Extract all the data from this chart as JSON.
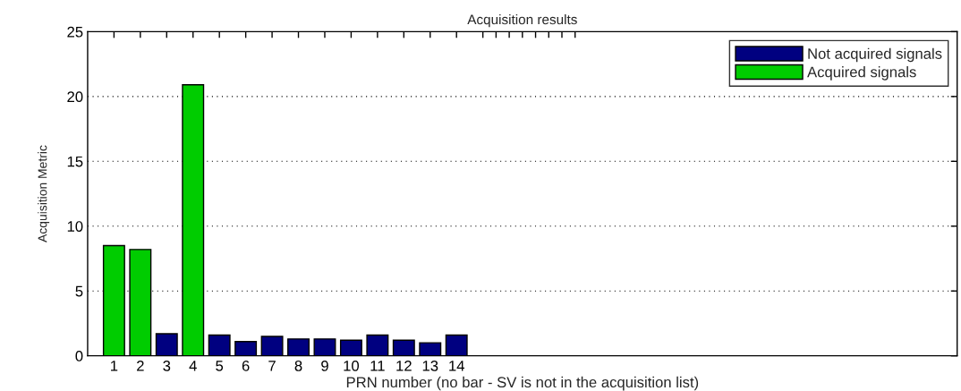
{
  "chart_data": {
    "type": "bar",
    "title": "Acquisition results",
    "xlabel": "PRN number (no bar - SV is not in the acquisition list)",
    "ylabel": "Acquisition Metric",
    "x": [
      1,
      2,
      3,
      4,
      5,
      6,
      7,
      8,
      9,
      10,
      11,
      12,
      13,
      14
    ],
    "series": [
      {
        "name": "Not acquired signals",
        "color": "#000080",
        "values": [
          null,
          null,
          1.7,
          null,
          1.6,
          1.1,
          1.5,
          1.3,
          1.3,
          1.2,
          1.6,
          1.2,
          1.0,
          1.6
        ]
      },
      {
        "name": "Acquired signals",
        "color": "#00cc00",
        "values": [
          8.5,
          8.2,
          null,
          20.9,
          null,
          null,
          null,
          null,
          null,
          null,
          null,
          null,
          null,
          null
        ]
      }
    ],
    "xlim": [
      0,
      33
    ],
    "xticks": [
      1,
      2,
      3,
      4,
      5,
      6,
      7,
      8,
      9,
      10,
      11,
      12,
      13,
      14,
      {
        "value": 15,
        "label": null
      },
      {
        "value": 15.5,
        "label": null
      },
      {
        "value": 16,
        "label": null
      },
      {
        "value": 16.5,
        "label": null
      },
      {
        "value": 17,
        "label": null
      },
      {
        "value": 17.5,
        "label": null
      },
      {
        "value": 18,
        "label": null
      },
      {
        "value": 18.5,
        "label": null
      }
    ],
    "ylim": [
      0,
      25
    ],
    "yticks": [
      0,
      5,
      10,
      15,
      20,
      25
    ],
    "grid": "y",
    "legend": "top right"
  }
}
